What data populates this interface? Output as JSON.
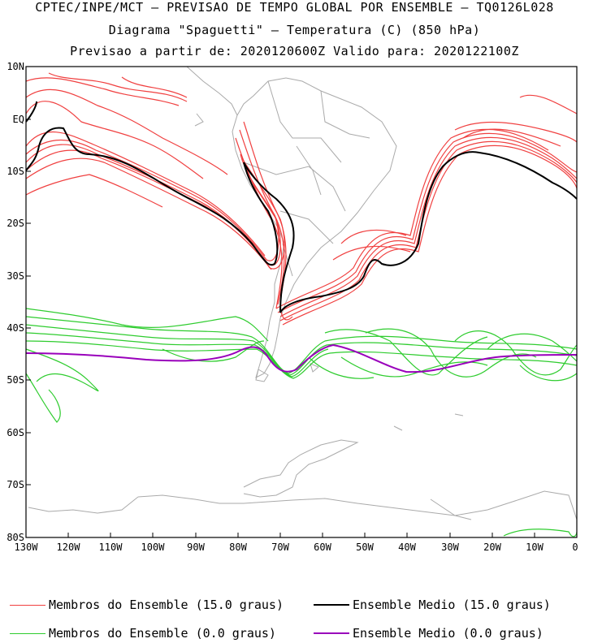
{
  "header": {
    "line1": "CPTEC/INPE/MCT – PREVISAO DE TEMPO GLOBAL POR ENSEMBLE – TQ0126L028",
    "line2": "Diagrama \"Spaguetti\" – Temperatura (C) (850 hPa)",
    "line3": "Previsao a partir de: 2020120600Z   Valido para: 2020122100Z"
  },
  "map": {
    "lat_labels": [
      "10N",
      "EQ",
      "10S",
      "20S",
      "30S",
      "40S",
      "50S",
      "60S",
      "70S",
      "80S"
    ],
    "lon_labels": [
      "130W",
      "120W",
      "110W",
      "100W",
      "90W",
      "80W",
      "70W",
      "60W",
      "50W",
      "40W",
      "30W",
      "20W",
      "10W",
      "0"
    ],
    "colors": {
      "members_15": "#f04040",
      "mean_15": "#000000",
      "members_0": "#2ecc2e",
      "mean_0": "#9900bb",
      "coast": "#aaaaaa"
    }
  },
  "legend": {
    "members_15": "Membros do Ensemble (15.0 graus)",
    "mean_15": "Ensemble Medio (15.0 graus)",
    "members_0": "Membros do Ensemble (0.0 graus)",
    "mean_0": "Ensemble Medio (0.0 graus)"
  }
}
